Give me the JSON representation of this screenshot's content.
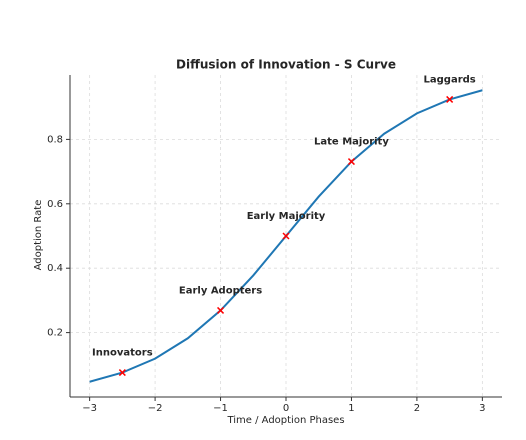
{
  "chart_data": {
    "type": "line",
    "title": "Diffusion of Innovation - S Curve",
    "xlabel": "Time / Adoption Phases",
    "ylabel": "Adoption Rate",
    "series": [
      {
        "color": "#1f77b4",
        "x": [
          -3,
          -2.5,
          -2,
          -1.5,
          -1,
          -0.5,
          0,
          0.5,
          1,
          1.5,
          2,
          2.5,
          3
        ],
        "values": [
          0.0474,
          0.0759,
          0.1192,
          0.1824,
          0.2689,
          0.3775,
          0.5,
          0.6225,
          0.7311,
          0.8176,
          0.8808,
          0.9241,
          0.9526
        ]
      },
      {
        "color": "#ff0000",
        "marker": "x",
        "x": [
          -2.5,
          -1,
          0,
          1,
          2.5
        ],
        "values": [
          0.0759,
          0.2689,
          0.5,
          0.7311,
          0.9241
        ]
      }
    ],
    "annotations": [
      "Innovators",
      "Early Adopters",
      "Early Majority",
      "Late Majority",
      "Laggards"
    ],
    "xlim": [
      -3.3,
      3.3
    ],
    "ylim": [
      0,
      1
    ],
    "xticks": [
      {
        "value": -3,
        "label": "−3"
      },
      {
        "value": -2,
        "label": "−2"
      },
      {
        "value": -1,
        "label": "−1"
      },
      0,
      1,
      2,
      3
    ],
    "yticks": [
      0.2,
      0.4,
      0.6,
      0.8
    ],
    "grid": true
  }
}
